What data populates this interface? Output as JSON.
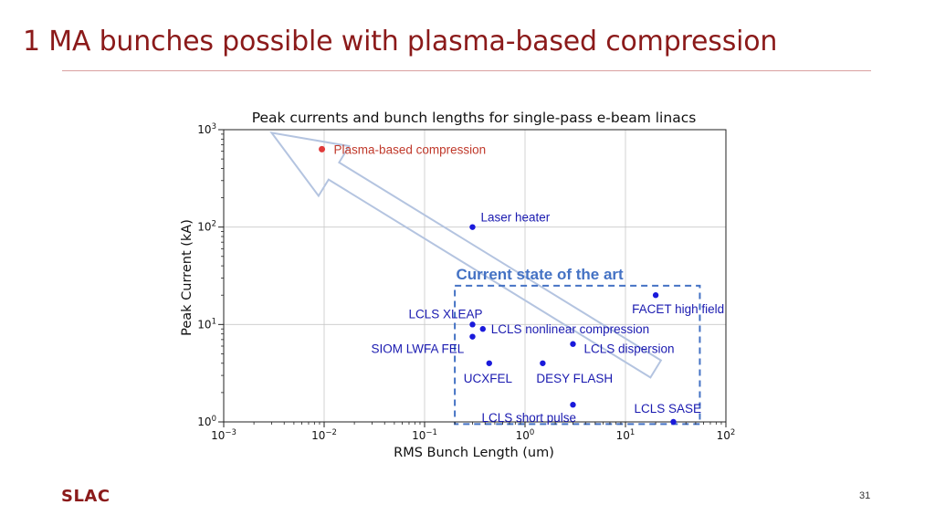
{
  "slide": {
    "title": "1 MA bunches possible with plasma-based compression",
    "logo": "SLAC",
    "page_number": "31",
    "colors": {
      "title": "#8b1a1a",
      "rule": "#d9a0a0"
    }
  },
  "chart_data": {
    "type": "scatter",
    "title": "Peak currents and bunch lengths for single-pass e-beam linacs",
    "xlabel": "RMS Bunch Length (um)",
    "ylabel": "Peak Current (kA)",
    "xscale": "log",
    "yscale": "log",
    "xlim": [
      0.001,
      100
    ],
    "ylim": [
      1,
      1000
    ],
    "xticks": [
      {
        "value": 0.001,
        "base": "10",
        "exp": "−3"
      },
      {
        "value": 0.01,
        "base": "10",
        "exp": "−2"
      },
      {
        "value": 0.1,
        "base": "10",
        "exp": "−1"
      },
      {
        "value": 1,
        "base": "10",
        "exp": "0"
      },
      {
        "value": 10,
        "base": "10",
        "exp": "1"
      },
      {
        "value": 100,
        "base": "10",
        "exp": "2"
      }
    ],
    "yticks": [
      {
        "value": 1,
        "base": "10",
        "exp": "0"
      },
      {
        "value": 10,
        "base": "10",
        "exp": "1"
      },
      {
        "value": 100,
        "base": "10",
        "exp": "2"
      },
      {
        "value": 1000,
        "base": "10",
        "exp": "3"
      }
    ],
    "grid": true,
    "colors": {
      "point": "#1a1adb",
      "label": "#1a1ab0",
      "highlight": "#e03a3a",
      "highlight_label": "#c0392b",
      "region": "#4472c4",
      "arrow": "#b4c4e0"
    },
    "points": [
      {
        "label": "Plasma-based compression",
        "x": 0.0095,
        "y": 630,
        "highlight": true
      },
      {
        "label": "Laser heater",
        "x": 0.3,
        "y": 100
      },
      {
        "label": "FACET high field",
        "x": 20,
        "y": 20
      },
      {
        "label": "LCLS XLEAP",
        "x": 0.3,
        "y": 10
      },
      {
        "label": "LCLS nonlinear compression",
        "x": 0.38,
        "y": 9
      },
      {
        "label": "SIOM LWFA FEL",
        "x": 0.3,
        "y": 7.5
      },
      {
        "label": "LCLS dispersion",
        "x": 3.0,
        "y": 6.3
      },
      {
        "label": "UCXFEL",
        "x": 0.44,
        "y": 4
      },
      {
        "label": "DESY FLASH",
        "x": 1.5,
        "y": 4
      },
      {
        "label": "LCLS short pulse",
        "x": 3.0,
        "y": 1.5
      },
      {
        "label": "LCLS SASE",
        "x": 30,
        "y": 1
      }
    ],
    "annotations": [
      {
        "text": "Current state of the art",
        "x": 1.4,
        "y": 33
      }
    ],
    "region": {
      "x": [
        0.2,
        55
      ],
      "y": [
        0.95,
        25
      ]
    },
    "arrow": {
      "tail": [
        20,
        3.5
      ],
      "head": [
        0.003,
        930
      ]
    }
  }
}
